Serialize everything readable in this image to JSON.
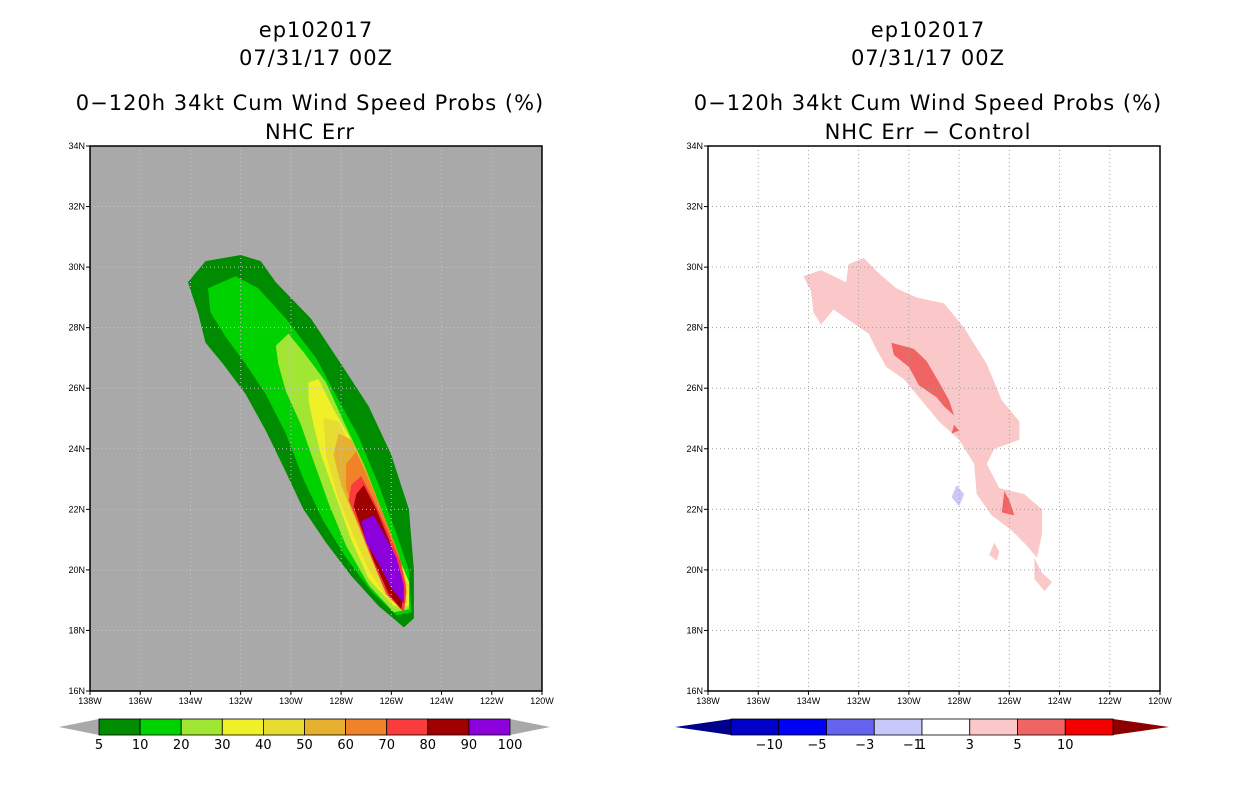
{
  "left": {
    "title_line1": "ep102017",
    "title_line2": "07/31/17 00Z",
    "title_line3": "0−120h 34kt Cum Wind Speed Probs (%)",
    "title_line4": "NHC Err"
  },
  "right": {
    "title_line1": "ep102017",
    "title_line2": "07/31/17 00Z",
    "title_line3": "0−120h 34kt Cum Wind Speed Probs (%)",
    "title_line4": "NHC Err − Control"
  },
  "chart_data": [
    {
      "type": "contour-map",
      "title": "0−120h 34kt Cum Wind Speed Probs (%)",
      "subtitle": "NHC Err",
      "xlim": [
        -138,
        -120
      ],
      "ylim": [
        16,
        34
      ],
      "x_ticks": [
        "138W",
        "136W",
        "134W",
        "132W",
        "130W",
        "128W",
        "126W",
        "124W",
        "122W",
        "120W"
      ],
      "y_ticks": [
        "16N",
        "18N",
        "20N",
        "22N",
        "24N",
        "26N",
        "28N",
        "30N",
        "32N",
        "34N"
      ],
      "background": "#a9a9a9",
      "colorbar": {
        "labels": [
          "5",
          "10",
          "20",
          "30",
          "40",
          "50",
          "60",
          "70",
          "80",
          "90",
          "100"
        ],
        "colors": [
          "#008c00",
          "#00d200",
          "#a0e632",
          "#f0f028",
          "#e6dc32",
          "#e6af2d",
          "#f08228",
          "#fa3c3c",
          "#a00000",
          "#8c00dc"
        ],
        "under": "#a9a9a9",
        "over": "#a9a9a9"
      },
      "levels": [
        {
          "min": 5,
          "color": "#008c00",
          "polygon": [
            [
              -134.1,
              29.5
            ],
            [
              -133.4,
              30.2
            ],
            [
              -132,
              30.4
            ],
            [
              -131.2,
              30.2
            ],
            [
              -130.6,
              29.5
            ],
            [
              -129.2,
              28.3
            ],
            [
              -128,
              26.8
            ],
            [
              -126.9,
              25.4
            ],
            [
              -126,
              23.8
            ],
            [
              -125.3,
              22
            ],
            [
              -125.1,
              20
            ],
            [
              -125.1,
              18.4
            ],
            [
              -125.5,
              18.1
            ],
            [
              -126.5,
              18.8
            ],
            [
              -127.6,
              19.8
            ],
            [
              -128.6,
              20.9
            ],
            [
              -129.5,
              22
            ],
            [
              -130.3,
              23.4
            ],
            [
              -131,
              24.6
            ],
            [
              -131.8,
              25.8
            ],
            [
              -132.7,
              26.8
            ],
            [
              -133.4,
              27.5
            ],
            [
              -133.7,
              28.5
            ]
          ]
        },
        {
          "min": 10,
          "color": "#00d200",
          "polygon": [
            [
              -133.3,
              29.3
            ],
            [
              -132.2,
              29.7
            ],
            [
              -131.3,
              29.3
            ],
            [
              -130.2,
              28.3
            ],
            [
              -129,
              27
            ],
            [
              -128.1,
              25.6
            ],
            [
              -127.3,
              24.4
            ],
            [
              -126.5,
              22.8
            ],
            [
              -125.8,
              21.2
            ],
            [
              -125.3,
              20
            ],
            [
              -125.2,
              18.6
            ],
            [
              -125.8,
              18.5
            ],
            [
              -126.8,
              19.3
            ],
            [
              -127.8,
              20.4
            ],
            [
              -128.7,
              21.6
            ],
            [
              -129.5,
              23
            ],
            [
              -130.2,
              24.5
            ],
            [
              -131,
              25.8
            ],
            [
              -131.8,
              26.8
            ],
            [
              -132.6,
              27.7
            ],
            [
              -133.2,
              28.5
            ]
          ]
        },
        {
          "min": 20,
          "color": "#a0e632",
          "polygon": [
            [
              -130.6,
              27.4
            ],
            [
              -130.1,
              27.8
            ],
            [
              -129.5,
              27.2
            ],
            [
              -128.6,
              26.2
            ],
            [
              -127.9,
              24.9
            ],
            [
              -127.1,
              23.5
            ],
            [
              -126.4,
              22
            ],
            [
              -125.8,
              20.6
            ],
            [
              -125.3,
              19.6
            ],
            [
              -125.3,
              18.7
            ],
            [
              -125.9,
              18.6
            ],
            [
              -126.9,
              19.5
            ],
            [
              -127.8,
              20.8
            ],
            [
              -128.5,
              22.2
            ],
            [
              -129.1,
              23.6
            ],
            [
              -129.6,
              24.8
            ],
            [
              -130.2,
              25.9
            ],
            [
              -130.5,
              26.8
            ]
          ]
        },
        {
          "min": 30,
          "color": "#f0f028",
          "polygon": [
            [
              -129.3,
              26.2
            ],
            [
              -128.9,
              26.3
            ],
            [
              -128.3,
              25.3
            ],
            [
              -127.6,
              24.3
            ],
            [
              -126.9,
              22.9
            ],
            [
              -126.3,
              21.6
            ],
            [
              -125.7,
              20.4
            ],
            [
              -125.3,
              19.6
            ],
            [
              -125.3,
              18.8
            ],
            [
              -125.9,
              18.8
            ],
            [
              -126.9,
              19.7
            ],
            [
              -127.6,
              21
            ],
            [
              -128.2,
              22.4
            ],
            [
              -128.8,
              23.8
            ],
            [
              -129.1,
              24.8
            ],
            [
              -129.3,
              25.6
            ]
          ]
        },
        {
          "min": 40,
          "color": "#e6dc32",
          "polygon": [
            [
              -128.7,
              25
            ],
            [
              -128.1,
              24.9
            ],
            [
              -127.5,
              23.9
            ],
            [
              -126.9,
              22.7
            ],
            [
              -126.2,
              21.4
            ],
            [
              -125.7,
              20.3
            ],
            [
              -125.3,
              19.5
            ],
            [
              -125.4,
              18.8
            ],
            [
              -126.1,
              19
            ],
            [
              -126.9,
              20
            ],
            [
              -127.6,
              21.3
            ],
            [
              -128.2,
              22.6
            ],
            [
              -128.6,
              23.8
            ]
          ]
        },
        {
          "min": 50,
          "color": "#e6af2d",
          "polygon": [
            [
              -128.1,
              24.5
            ],
            [
              -127.6,
              24.3
            ],
            [
              -127,
              23.3
            ],
            [
              -126.4,
              22
            ],
            [
              -125.9,
              20.9
            ],
            [
              -125.5,
              19.9
            ],
            [
              -125.4,
              18.9
            ],
            [
              -126.1,
              19.2
            ],
            [
              -126.8,
              20.4
            ],
            [
              -127.4,
              21.6
            ],
            [
              -128,
              22.8
            ],
            [
              -128.3,
              23.8
            ]
          ]
        },
        {
          "min": 60,
          "color": "#f08228",
          "polygon": [
            [
              -127.8,
              23.5
            ],
            [
              -127.4,
              23.9
            ],
            [
              -126.8,
              22.8
            ],
            [
              -126.2,
              21.6
            ],
            [
              -125.7,
              20.5
            ],
            [
              -125.4,
              19.5
            ],
            [
              -125.5,
              18.8
            ],
            [
              -126.2,
              19.3
            ],
            [
              -126.8,
              20.5
            ],
            [
              -127.4,
              21.7
            ],
            [
              -127.8,
              22.7
            ]
          ]
        },
        {
          "min": 70,
          "color": "#fa3c3c",
          "polygon": [
            [
              -127.6,
              22.8
            ],
            [
              -127.2,
              23.1
            ],
            [
              -126.7,
              22.3
            ],
            [
              -126.1,
              21.2
            ],
            [
              -125.6,
              20.2
            ],
            [
              -125.4,
              19.3
            ],
            [
              -125.5,
              18.6
            ],
            [
              -126.2,
              19.2
            ],
            [
              -126.8,
              20.4
            ],
            [
              -127.3,
              21.5
            ],
            [
              -127.7,
              22.3
            ]
          ]
        },
        {
          "min": 80,
          "color": "#a00000",
          "polygon": [
            [
              -127.4,
              22.5
            ],
            [
              -127.1,
              22.8
            ],
            [
              -126.6,
              22
            ],
            [
              -126.1,
              21
            ],
            [
              -125.7,
              20.1
            ],
            [
              -125.5,
              19.3
            ],
            [
              -125.6,
              18.7
            ],
            [
              -126.1,
              19.2
            ],
            [
              -126.7,
              20.3
            ],
            [
              -127.2,
              21.4
            ],
            [
              -127.5,
              22.1
            ]
          ]
        },
        {
          "min": 90,
          "color": "#8c00dc",
          "polygon": [
            [
              -127.2,
              21.6
            ],
            [
              -126.7,
              21.8
            ],
            [
              -126.3,
              21.2
            ],
            [
              -125.8,
              20.4
            ],
            [
              -125.5,
              19.5
            ],
            [
              -125.5,
              18.9
            ],
            [
              -126,
              19.4
            ],
            [
              -126.5,
              20.2
            ],
            [
              -127,
              20.9
            ]
          ]
        }
      ]
    },
    {
      "type": "contour-map",
      "title": "0−120h 34kt Cum Wind Speed Probs (%)",
      "subtitle": "NHC Err − Control",
      "xlim": [
        -138,
        -120
      ],
      "ylim": [
        16,
        34
      ],
      "x_ticks": [
        "138W",
        "136W",
        "134W",
        "132W",
        "130W",
        "128W",
        "126W",
        "124W",
        "122W",
        "120W"
      ],
      "y_ticks": [
        "16N",
        "18N",
        "20N",
        "22N",
        "24N",
        "26N",
        "28N",
        "30N",
        "32N",
        "34N"
      ],
      "background": "#ffffff",
      "colorbar": {
        "labels": [
          "−10",
          "−5",
          "−3",
          "−1",
          "1",
          "3",
          "5",
          "10"
        ],
        "colors": [
          "#0000c8",
          "#0000f5",
          "#6464f0",
          "#c8c8fa",
          "#ffffff",
          "#fac8c8",
          "#f06464",
          "#f50000"
        ],
        "under": "#00008c",
        "over": "#8c0000"
      },
      "regions": [
        {
          "value_range": [
            1,
            3
          ],
          "color": "#fac8c8",
          "polygon": [
            [
              -134.2,
              29.7
            ],
            [
              -133.5,
              29.9
            ],
            [
              -132.5,
              29.5
            ],
            [
              -132.4,
              30.1
            ],
            [
              -131.8,
              30.3
            ],
            [
              -131.2,
              29.8
            ],
            [
              -130.5,
              29.3
            ],
            [
              -129.7,
              29
            ],
            [
              -128.6,
              28.8
            ],
            [
              -127.8,
              28
            ],
            [
              -126.9,
              26.8
            ],
            [
              -126.3,
              25.6
            ],
            [
              -125.6,
              24.9
            ],
            [
              -125.6,
              24.3
            ],
            [
              -126.6,
              24
            ],
            [
              -126.9,
              23.5
            ],
            [
              -126.4,
              22.7
            ],
            [
              -125.4,
              22.5
            ],
            [
              -124.7,
              22
            ],
            [
              -124.7,
              21.2
            ],
            [
              -124.9,
              20.4
            ],
            [
              -125.3,
              20.8
            ],
            [
              -125.9,
              21.3
            ],
            [
              -126.7,
              21.8
            ],
            [
              -127.3,
              22.5
            ],
            [
              -127.4,
              23.5
            ],
            [
              -128,
              24.3
            ],
            [
              -128.8,
              24.9
            ],
            [
              -129.5,
              25.6
            ],
            [
              -130.2,
              26.3
            ],
            [
              -130.9,
              26.7
            ],
            [
              -131.3,
              27.3
            ],
            [
              -131.6,
              27.8
            ],
            [
              -132.3,
              28.2
            ],
            [
              -133,
              28.6
            ],
            [
              -133.5,
              28.1
            ],
            [
              -133.8,
              28.5
            ],
            [
              -133.9,
              29.2
            ]
          ]
        },
        {
          "value_range": [
            1,
            3
          ],
          "color": "#fac8c8",
          "polygon": [
            [
              -125,
              20.4
            ],
            [
              -124.7,
              19.9
            ],
            [
              -124.3,
              19.6
            ],
            [
              -124.6,
              19.3
            ],
            [
              -125,
              19.7
            ]
          ]
        },
        {
          "value_range": [
            1,
            3
          ],
          "color": "#fac8c8",
          "polygon": [
            [
              -126.6,
              20.9
            ],
            [
              -126.4,
              20.6
            ],
            [
              -126.5,
              20.3
            ],
            [
              -126.8,
              20.5
            ]
          ]
        },
        {
          "value_range": [
            3,
            5
          ],
          "color": "#f06464",
          "polygon": [
            [
              -130.7,
              27.5
            ],
            [
              -129.8,
              27.3
            ],
            [
              -129.3,
              26.9
            ],
            [
              -128.8,
              26.2
            ],
            [
              -128.4,
              25.6
            ],
            [
              -128.2,
              25.1
            ],
            [
              -128.6,
              25.4
            ],
            [
              -128.9,
              25.7
            ],
            [
              -129.6,
              26.1
            ],
            [
              -130,
              26.7
            ],
            [
              -130.6,
              27.1
            ]
          ]
        },
        {
          "value_range": [
            3,
            5
          ],
          "color": "#f06464",
          "polygon": [
            [
              -128.2,
              24.8
            ],
            [
              -128,
              24.6
            ],
            [
              -128.3,
              24.5
            ]
          ]
        },
        {
          "value_range": [
            3,
            5
          ],
          "color": "#f06464",
          "polygon": [
            [
              -126.2,
              22.6
            ],
            [
              -126,
              22.3
            ],
            [
              -125.8,
              21.8
            ],
            [
              -126.3,
              21.9
            ]
          ]
        },
        {
          "value_range": [
            -3,
            -1
          ],
          "color": "#c8c8fa",
          "polygon": [
            [
              -128.1,
              22.8
            ],
            [
              -127.8,
              22.5
            ],
            [
              -128,
              22.1
            ],
            [
              -128.3,
              22.4
            ]
          ]
        }
      ]
    }
  ]
}
